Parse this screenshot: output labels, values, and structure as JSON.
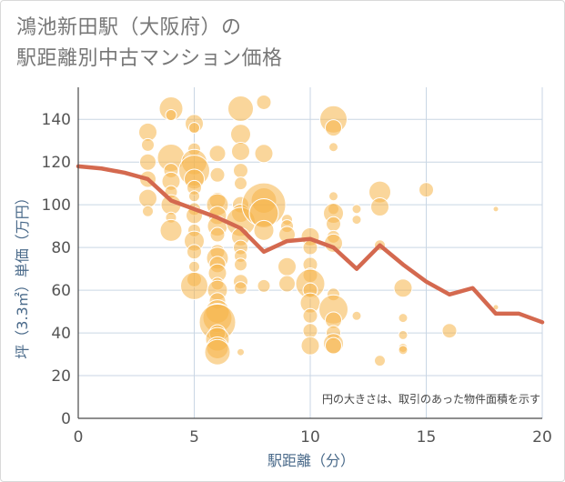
{
  "chart_data": {
    "type": "scatter",
    "title": "鴻池新田駅（大阪府）の",
    "subtitle": "駅距離別中古マンション価格",
    "xlabel": "駅距離（分）",
    "ylabel": "坪（3.3㎡）単価（万円）",
    "xlim": [
      0,
      20
    ],
    "ylim": [
      0,
      155
    ],
    "xticks": [
      0,
      5,
      10,
      15,
      20
    ],
    "yticks": [
      0,
      20,
      40,
      60,
      80,
      100,
      120,
      140
    ],
    "grid": true,
    "annotation": "円の大きさは、取引のあった物件面積を示す",
    "bubble_color": "#f5b449",
    "line_color": "#d4694f",
    "bubbles": [
      [
        3,
        134,
        10
      ],
      [
        3,
        128,
        7
      ],
      [
        3,
        120,
        9
      ],
      [
        3,
        112,
        9
      ],
      [
        3,
        103,
        10
      ],
      [
        3,
        97,
        6
      ],
      [
        4,
        145,
        13
      ],
      [
        4,
        142,
        6
      ],
      [
        4,
        122,
        15
      ],
      [
        4,
        116,
        8
      ],
      [
        4,
        111,
        10
      ],
      [
        4,
        106,
        7
      ],
      [
        4,
        100,
        11
      ],
      [
        4,
        94,
        6
      ],
      [
        4,
        88,
        12
      ],
      [
        5,
        138,
        10
      ],
      [
        5,
        136,
        6
      ],
      [
        5,
        126,
        7
      ],
      [
        5,
        120,
        14
      ],
      [
        5,
        116,
        17
      ],
      [
        5,
        112,
        11
      ],
      [
        5,
        108,
        8
      ],
      [
        5,
        104,
        6
      ],
      [
        5,
        98,
        7
      ],
      [
        5,
        95,
        9
      ],
      [
        5,
        88,
        7
      ],
      [
        5,
        83,
        11
      ],
      [
        5,
        78,
        8
      ],
      [
        5,
        71,
        6
      ],
      [
        5,
        65,
        8
      ],
      [
        5,
        62,
        15
      ],
      [
        6,
        124,
        9
      ],
      [
        6,
        114,
        8
      ],
      [
        6,
        102,
        9
      ],
      [
        6,
        100,
        12
      ],
      [
        6,
        95,
        10
      ],
      [
        6,
        90,
        11
      ],
      [
        6,
        86,
        8
      ],
      [
        6,
        78,
        8
      ],
      [
        6,
        75,
        12
      ],
      [
        6,
        72,
        9
      ],
      [
        6,
        68,
        10
      ],
      [
        6,
        63,
        7
      ],
      [
        6,
        60,
        11
      ],
      [
        6,
        55,
        9
      ],
      [
        6,
        50,
        13
      ],
      [
        6,
        47,
        16
      ],
      [
        6,
        45,
        20
      ],
      [
        6,
        40,
        9
      ],
      [
        6,
        37,
        13
      ],
      [
        6,
        33,
        12
      ],
      [
        6,
        31,
        14
      ],
      [
        7,
        145,
        14
      ],
      [
        7,
        133,
        11
      ],
      [
        7,
        125,
        10
      ],
      [
        7,
        116,
        8
      ],
      [
        7,
        110,
        7
      ],
      [
        7,
        100,
        9
      ],
      [
        7,
        96,
        10
      ],
      [
        7,
        92,
        16
      ],
      [
        7,
        85,
        10
      ],
      [
        7,
        80,
        8
      ],
      [
        7,
        76,
        7
      ],
      [
        7,
        72,
        7
      ],
      [
        7,
        64,
        8
      ],
      [
        7,
        61,
        7
      ],
      [
        7,
        31,
        4
      ],
      [
        8,
        148,
        8
      ],
      [
        8,
        124,
        10
      ],
      [
        8,
        102,
        14
      ],
      [
        8,
        100,
        24
      ],
      [
        8,
        96,
        16
      ],
      [
        8,
        88,
        11
      ],
      [
        8,
        62,
        7
      ],
      [
        9,
        93,
        6
      ],
      [
        9,
        90,
        7
      ],
      [
        9,
        86,
        9
      ],
      [
        9,
        71,
        10
      ],
      [
        9,
        63,
        9
      ],
      [
        10,
        85,
        10
      ],
      [
        10,
        80,
        8
      ],
      [
        10,
        72,
        8
      ],
      [
        10,
        67,
        8
      ],
      [
        10,
        63,
        16
      ],
      [
        10,
        60,
        8
      ],
      [
        10,
        54,
        11
      ],
      [
        10,
        48,
        8
      ],
      [
        10,
        41,
        8
      ],
      [
        10,
        34,
        10
      ],
      [
        11,
        140,
        15
      ],
      [
        11,
        136,
        9
      ],
      [
        11,
        127,
        5
      ],
      [
        11,
        104,
        5
      ],
      [
        11,
        98,
        6
      ],
      [
        11,
        96,
        11
      ],
      [
        11,
        91,
        8
      ],
      [
        11,
        85,
        7
      ],
      [
        11,
        82,
        10
      ],
      [
        11,
        58,
        7
      ],
      [
        11,
        51,
        16
      ],
      [
        11,
        46,
        9
      ],
      [
        11,
        40,
        8
      ],
      [
        11,
        35,
        11
      ],
      [
        11,
        34,
        9
      ],
      [
        12,
        98,
        5
      ],
      [
        12,
        93,
        5
      ],
      [
        12,
        48,
        5
      ],
      [
        13,
        106,
        12
      ],
      [
        13,
        99,
        10
      ],
      [
        13,
        81,
        6
      ],
      [
        13,
        27,
        6
      ],
      [
        14,
        61,
        10
      ],
      [
        14,
        47,
        5
      ],
      [
        14,
        39,
        5
      ],
      [
        14,
        33,
        5
      ],
      [
        14,
        32,
        5
      ],
      [
        15,
        107,
        8
      ],
      [
        16,
        41,
        8
      ],
      [
        18,
        98,
        3
      ],
      [
        18,
        52,
        3
      ]
    ],
    "series": [
      {
        "x": [
          0,
          1,
          2,
          3,
          4,
          5,
          6,
          7,
          8,
          9,
          10,
          11,
          12,
          13,
          14,
          15,
          16,
          17,
          18,
          19,
          20
        ],
        "y": [
          118,
          117,
          115,
          112,
          102,
          98,
          94,
          89,
          78,
          83,
          84,
          80,
          70,
          81,
          72,
          64,
          58,
          61,
          49,
          49,
          45
        ]
      }
    ]
  }
}
